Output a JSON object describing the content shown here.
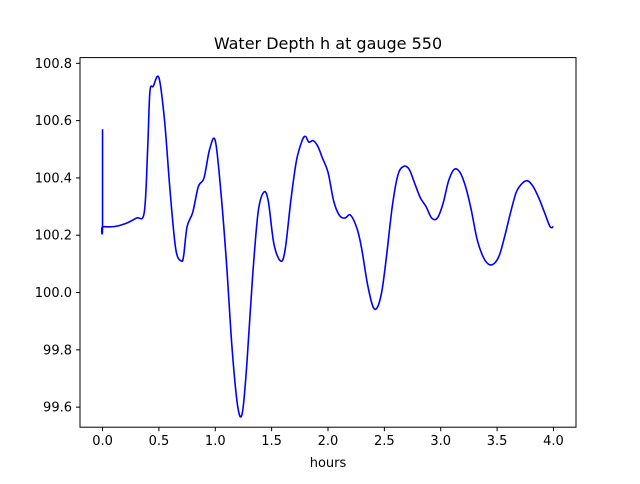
{
  "chart_data": {
    "type": "line",
    "title": "Water Depth h at gauge 550",
    "xlabel": "hours",
    "ylabel": "",
    "xlim": [
      -0.2,
      4.2
    ],
    "ylim": [
      99.53,
      100.82
    ],
    "xticks": [
      0.0,
      0.5,
      1.0,
      1.5,
      2.0,
      2.5,
      3.0,
      3.5,
      4.0
    ],
    "xtick_labels": [
      "0.0",
      "0.5",
      "1.0",
      "1.5",
      "2.0",
      "2.5",
      "3.0",
      "3.5",
      "4.0"
    ],
    "yticks": [
      99.6,
      99.8,
      100.0,
      100.2,
      100.4,
      100.6,
      100.8
    ],
    "ytick_labels": [
      "99.6",
      "99.8",
      "100.0",
      "100.2",
      "100.4",
      "100.6",
      "100.8"
    ],
    "grid": false,
    "legend": "none",
    "series": [
      {
        "color": "#0000ff",
        "x": [
          0.0,
          0.0,
          0.0,
          0.1,
          0.2,
          0.3,
          0.37,
          0.4,
          0.42,
          0.45,
          0.5,
          0.55,
          0.6,
          0.65,
          0.7,
          0.72,
          0.75,
          0.8,
          0.85,
          0.9,
          0.95,
          1.0,
          1.05,
          1.1,
          1.15,
          1.2,
          1.24,
          1.28,
          1.33,
          1.38,
          1.43,
          1.47,
          1.52,
          1.58,
          1.62,
          1.67,
          1.72,
          1.77,
          1.8,
          1.83,
          1.87,
          1.91,
          1.95,
          2.0,
          2.05,
          2.1,
          2.15,
          2.2,
          2.26,
          2.3,
          2.35,
          2.4,
          2.44,
          2.48,
          2.52,
          2.57,
          2.62,
          2.67,
          2.72,
          2.77,
          2.82,
          2.87,
          2.92,
          2.97,
          3.02,
          3.07,
          3.12,
          3.17,
          3.22,
          3.27,
          3.32,
          3.37,
          3.42,
          3.47,
          3.52,
          3.57,
          3.62,
          3.67,
          3.72,
          3.77,
          3.82,
          3.87,
          3.92,
          3.97,
          4.0
        ],
        "y": [
          100.57,
          100.23,
          100.23,
          100.23,
          100.24,
          100.26,
          100.28,
          100.5,
          100.7,
          100.72,
          100.75,
          100.6,
          100.35,
          100.15,
          100.11,
          100.13,
          100.23,
          100.28,
          100.37,
          100.4,
          100.5,
          100.53,
          100.35,
          100.1,
          99.8,
          99.6,
          99.58,
          99.75,
          100.05,
          100.28,
          100.35,
          100.32,
          100.17,
          100.11,
          100.15,
          100.32,
          100.46,
          100.53,
          100.545,
          100.525,
          100.53,
          100.51,
          100.47,
          100.42,
          100.32,
          100.27,
          100.26,
          100.27,
          100.22,
          100.15,
          100.03,
          99.95,
          99.95,
          100.01,
          100.13,
          100.3,
          100.41,
          100.44,
          100.43,
          100.38,
          100.33,
          100.3,
          100.26,
          100.26,
          100.31,
          100.39,
          100.43,
          100.42,
          100.37,
          100.29,
          100.19,
          100.13,
          100.1,
          100.1,
          100.13,
          100.2,
          100.28,
          100.35,
          100.38,
          100.39,
          100.37,
          100.33,
          100.28,
          100.23,
          100.23
        ]
      }
    ]
  }
}
